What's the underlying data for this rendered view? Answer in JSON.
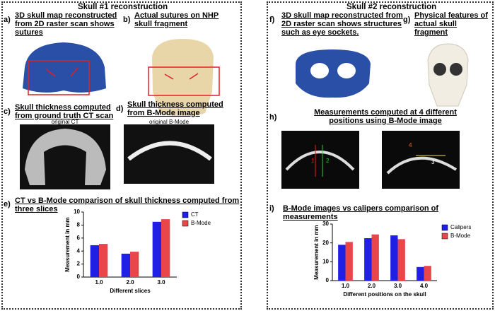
{
  "headers": [
    "Skull #1 reconstruction",
    "Skull #2 reconstruction"
  ],
  "panels": [
    {
      "label": "a)",
      "caption": "3D skull map reconstructed from 2D raster scan shows sutures"
    },
    {
      "label": "b)",
      "caption": "Actual sutures on NHP skull fragment"
    },
    {
      "label": "c)",
      "caption": "Skull thickness computed from ground truth CT scan"
    },
    {
      "label": "d)",
      "caption": "Skull thickness computed from B-Mode image"
    },
    {
      "label": "e)",
      "caption": "CT vs B-Mode comparison of skull thickness computed from three slices"
    },
    {
      "label": "f)",
      "caption": "3D skull map reconstructed from 2D raster scan shows structures such as eye sockets."
    },
    {
      "label": "g)",
      "caption": "Physical features of actual skull fragment"
    },
    {
      "label": "h)",
      "caption": "Measurements computed at 4 different positions using B-Mode image"
    },
    {
      "label": "i)",
      "caption": "B-Mode images vs calipers comparison of measurements"
    }
  ],
  "image_labels": [
    "original CT",
    "original B-Mode",
    "1",
    "2",
    "3",
    "4"
  ],
  "chart_data": [
    {
      "type": "bar",
      "categories": [
        "1.0",
        "2.0",
        "3.0"
      ],
      "series": [
        {
          "name": "CT",
          "color": "#1f1fe6",
          "values": [
            4.9,
            3.6,
            8.5
          ]
        },
        {
          "name": "B-Mode",
          "color": "#e8464a",
          "values": [
            5.1,
            3.9,
            8.9
          ]
        }
      ],
      "ylim": [
        0,
        10
      ],
      "yticks": [
        0,
        2,
        4,
        6,
        8,
        10
      ],
      "ylabel": "Measurement in mm",
      "xlabel": "Different slices",
      "legend": "top-right"
    },
    {
      "type": "bar",
      "categories": [
        "1.0",
        "2.0",
        "3.0",
        "4.0"
      ],
      "series": [
        {
          "name": "Calipers",
          "color": "#1f1fe6",
          "values": [
            19,
            22.5,
            24,
            7.2
          ]
        },
        {
          "name": "B-Mode",
          "color": "#e8464a",
          "values": [
            20.5,
            24.5,
            22,
            7.8
          ]
        }
      ],
      "ylim": [
        0,
        30
      ],
      "yticks": [
        0,
        10,
        20,
        30
      ],
      "ylabel": "Measurement in mm",
      "xlabel": "Different positions on the skull",
      "legend": "right"
    }
  ]
}
